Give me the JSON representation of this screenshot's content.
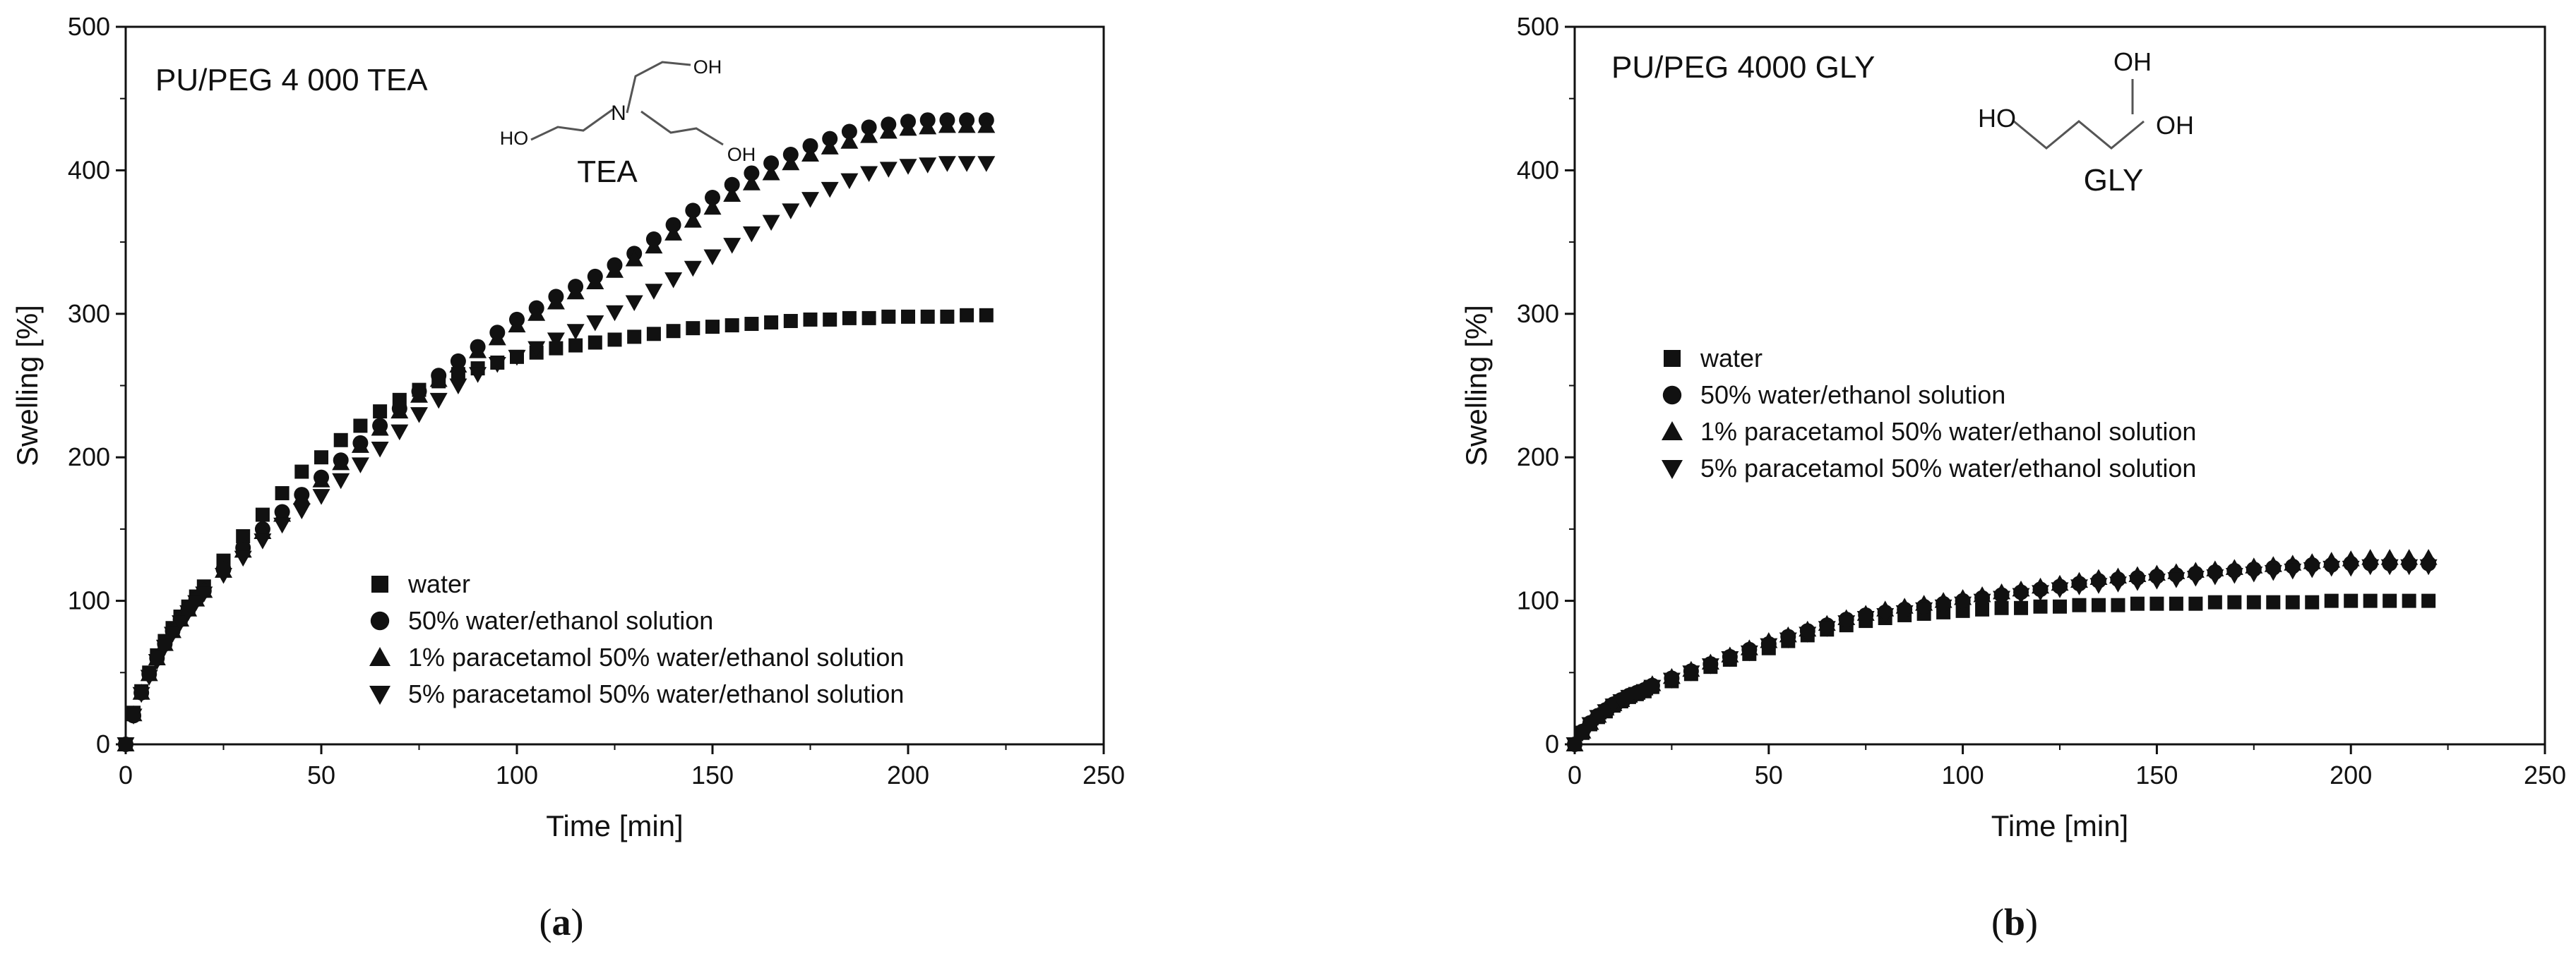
{
  "figure": {
    "colors": {
      "ink": "#111111",
      "background": "#ffffff"
    }
  },
  "chart_data": [
    {
      "type": "scatter",
      "panel_label": "a",
      "title": "PU/PEG 4 000 TEA",
      "xlabel": "Time [min]",
      "ylabel": "Swelling [%]",
      "xlim": [
        0,
        250
      ],
      "ylim": [
        0,
        500
      ],
      "xticks": [
        0,
        50,
        100,
        150,
        200,
        250
      ],
      "yticks": [
        0,
        100,
        200,
        300,
        400,
        500
      ],
      "grid": false,
      "legend_position": "bottom-center",
      "molecule": {
        "name": "TEA",
        "center_atom": "N",
        "groups": [
          "OH",
          "HO",
          "OH"
        ]
      },
      "series": [
        {
          "name": "water",
          "marker": "square",
          "x": [
            0,
            2,
            4,
            6,
            8,
            10,
            12,
            14,
            16,
            18,
            20,
            25,
            30,
            35,
            40,
            45,
            50,
            55,
            60,
            65,
            70,
            75,
            80,
            85,
            90,
            95,
            100,
            105,
            110,
            115,
            120,
            125,
            130,
            135,
            140,
            145,
            150,
            155,
            160,
            165,
            170,
            175,
            180,
            185,
            190,
            195,
            200,
            205,
            210,
            215,
            220
          ],
          "y": [
            0,
            22,
            37,
            50,
            62,
            72,
            81,
            89,
            96,
            103,
            110,
            128,
            145,
            160,
            175,
            190,
            200,
            212,
            222,
            232,
            240,
            247,
            253,
            258,
            262,
            266,
            270,
            273,
            276,
            278,
            280,
            282,
            284,
            286,
            288,
            290,
            291,
            292,
            293,
            294,
            295,
            296,
            296,
            297,
            297,
            298,
            298,
            298,
            298,
            299,
            299
          ]
        },
        {
          "name": "50% water/ethanol solution",
          "marker": "circle",
          "x": [
            0,
            2,
            4,
            6,
            8,
            10,
            12,
            14,
            16,
            18,
            20,
            25,
            30,
            35,
            40,
            45,
            50,
            55,
            60,
            65,
            70,
            75,
            80,
            85,
            90,
            95,
            100,
            105,
            110,
            115,
            120,
            125,
            130,
            135,
            140,
            145,
            150,
            155,
            160,
            165,
            170,
            175,
            180,
            185,
            190,
            195,
            200,
            205,
            210,
            215,
            220
          ],
          "y": [
            0,
            20,
            36,
            49,
            60,
            70,
            79,
            87,
            94,
            101,
            107,
            122,
            137,
            150,
            162,
            174,
            186,
            198,
            210,
            222,
            234,
            246,
            257,
            267,
            277,
            287,
            296,
            304,
            312,
            319,
            326,
            334,
            342,
            352,
            362,
            372,
            381,
            390,
            398,
            405,
            411,
            417,
            422,
            427,
            430,
            432,
            434,
            435,
            435,
            435,
            435
          ]
        },
        {
          "name": "1% paracetamol 50% water/ethanol solution",
          "marker": "triangle-up",
          "x": [
            0,
            2,
            4,
            6,
            8,
            10,
            12,
            14,
            16,
            18,
            20,
            25,
            30,
            35,
            40,
            45,
            50,
            55,
            60,
            65,
            70,
            75,
            80,
            85,
            90,
            95,
            100,
            105,
            110,
            115,
            120,
            125,
            130,
            135,
            140,
            145,
            150,
            155,
            160,
            165,
            170,
            175,
            180,
            185,
            190,
            195,
            200,
            205,
            210,
            215,
            220
          ],
          "y": [
            0,
            21,
            36,
            49,
            60,
            70,
            79,
            87,
            94,
            101,
            107,
            121,
            135,
            148,
            160,
            172,
            184,
            196,
            208,
            220,
            232,
            243,
            254,
            264,
            274,
            283,
            292,
            300,
            308,
            315,
            322,
            330,
            338,
            347,
            356,
            365,
            374,
            383,
            391,
            398,
            405,
            411,
            416,
            420,
            424,
            427,
            429,
            430,
            431,
            431,
            431
          ]
        },
        {
          "name": "5% paracetamol 50% water/ethanol solution",
          "marker": "triangle-down",
          "x": [
            0,
            2,
            4,
            6,
            8,
            10,
            12,
            14,
            16,
            18,
            20,
            25,
            30,
            35,
            40,
            45,
            50,
            55,
            60,
            65,
            70,
            75,
            80,
            85,
            90,
            95,
            100,
            105,
            110,
            115,
            120,
            125,
            130,
            135,
            140,
            145,
            150,
            155,
            160,
            165,
            170,
            175,
            180,
            185,
            190,
            195,
            200,
            205,
            210,
            215,
            220
          ],
          "y": [
            0,
            20,
            35,
            47,
            58,
            68,
            77,
            85,
            92,
            99,
            105,
            118,
            130,
            142,
            153,
            163,
            173,
            184,
            195,
            206,
            218,
            230,
            240,
            250,
            258,
            265,
            270,
            276,
            282,
            288,
            294,
            301,
            308,
            316,
            324,
            332,
            340,
            348,
            356,
            364,
            372,
            380,
            387,
            393,
            398,
            401,
            403,
            404,
            405,
            405,
            405
          ]
        }
      ]
    },
    {
      "type": "scatter",
      "panel_label": "b",
      "title": "PU/PEG 4000 GLY",
      "xlabel": "Time [min]",
      "ylabel": "Swelling [%]",
      "xlim": [
        0,
        250
      ],
      "ylim": [
        0,
        500
      ],
      "xticks": [
        0,
        50,
        100,
        150,
        200,
        250
      ],
      "yticks": [
        0,
        100,
        200,
        300,
        400,
        500
      ],
      "grid": false,
      "legend_position": "middle-left",
      "molecule": {
        "name": "GLY",
        "groups": [
          "HO",
          "OH",
          "OH"
        ]
      },
      "series": [
        {
          "name": "water",
          "marker": "square",
          "x": [
            0,
            2,
            4,
            6,
            8,
            10,
            12,
            14,
            16,
            18,
            20,
            25,
            30,
            35,
            40,
            45,
            50,
            55,
            60,
            65,
            70,
            75,
            80,
            85,
            90,
            95,
            100,
            105,
            110,
            115,
            120,
            125,
            130,
            135,
            140,
            145,
            150,
            155,
            160,
            165,
            170,
            175,
            180,
            185,
            190,
            195,
            200,
            205,
            210,
            215,
            220
          ],
          "y": [
            0,
            8,
            14,
            19,
            23,
            27,
            30,
            33,
            35,
            37,
            40,
            44,
            49,
            54,
            59,
            63,
            67,
            72,
            76,
            80,
            83,
            86,
            88,
            90,
            91,
            92,
            93,
            94,
            95,
            95,
            96,
            96,
            97,
            97,
            97,
            98,
            98,
            98,
            98,
            99,
            99,
            99,
            99,
            99,
            99,
            100,
            100,
            100,
            100,
            100,
            100
          ]
        },
        {
          "name": "50% water/ethanol solution",
          "marker": "circle",
          "x": [
            0,
            2,
            4,
            6,
            8,
            10,
            12,
            14,
            16,
            18,
            20,
            25,
            30,
            35,
            40,
            45,
            50,
            55,
            60,
            65,
            70,
            75,
            80,
            85,
            90,
            95,
            100,
            105,
            110,
            115,
            120,
            125,
            130,
            135,
            140,
            145,
            150,
            155,
            160,
            165,
            170,
            175,
            180,
            185,
            190,
            195,
            200,
            205,
            210,
            215,
            220
          ],
          "y": [
            0,
            9,
            15,
            20,
            24,
            28,
            31,
            34,
            36,
            38,
            41,
            46,
            51,
            56,
            61,
            66,
            70,
            75,
            79,
            83,
            87,
            90,
            92,
            94,
            96,
            98,
            100,
            102,
            104,
            106,
            108,
            110,
            112,
            114,
            115,
            116,
            117,
            118,
            119,
            120,
            121,
            122,
            123,
            124,
            125,
            125,
            126,
            126,
            126,
            126,
            126
          ]
        },
        {
          "name": "1% paracetamol 50% water/ethanol solution",
          "marker": "triangle-up",
          "x": [
            0,
            2,
            4,
            6,
            8,
            10,
            12,
            14,
            16,
            18,
            20,
            25,
            30,
            35,
            40,
            45,
            50,
            55,
            60,
            65,
            70,
            75,
            80,
            85,
            90,
            95,
            100,
            105,
            110,
            115,
            120,
            125,
            130,
            135,
            140,
            145,
            150,
            155,
            160,
            165,
            170,
            175,
            180,
            185,
            190,
            195,
            200,
            205,
            210,
            215,
            220
          ],
          "y": [
            0,
            9,
            15,
            20,
            25,
            28,
            31,
            34,
            36,
            39,
            42,
            47,
            52,
            57,
            62,
            67,
            72,
            76,
            80,
            84,
            88,
            91,
            94,
            96,
            98,
            100,
            102,
            104,
            106,
            108,
            110,
            112,
            114,
            116,
            117,
            118,
            119,
            120,
            121,
            122,
            123,
            124,
            125,
            126,
            127,
            128,
            129,
            130,
            130,
            130,
            130
          ]
        },
        {
          "name": "5% paracetamol 50% water/ethanol solution",
          "marker": "triangle-down",
          "x": [
            0,
            2,
            4,
            6,
            8,
            10,
            12,
            14,
            16,
            18,
            20,
            25,
            30,
            35,
            40,
            45,
            50,
            55,
            60,
            65,
            70,
            75,
            80,
            85,
            90,
            95,
            100,
            105,
            110,
            115,
            120,
            125,
            130,
            135,
            140,
            145,
            150,
            155,
            160,
            165,
            170,
            175,
            180,
            185,
            190,
            195,
            200,
            205,
            210,
            215,
            220
          ],
          "y": [
            0,
            8,
            14,
            19,
            23,
            27,
            30,
            33,
            35,
            37,
            40,
            45,
            50,
            55,
            60,
            64,
            69,
            73,
            77,
            81,
            85,
            88,
            90,
            92,
            94,
            96,
            98,
            100,
            102,
            104,
            106,
            108,
            110,
            111,
            112,
            113,
            114,
            115,
            116,
            117,
            118,
            119,
            120,
            121,
            122,
            123,
            123,
            124,
            124,
            124,
            124
          ]
        }
      ]
    }
  ]
}
